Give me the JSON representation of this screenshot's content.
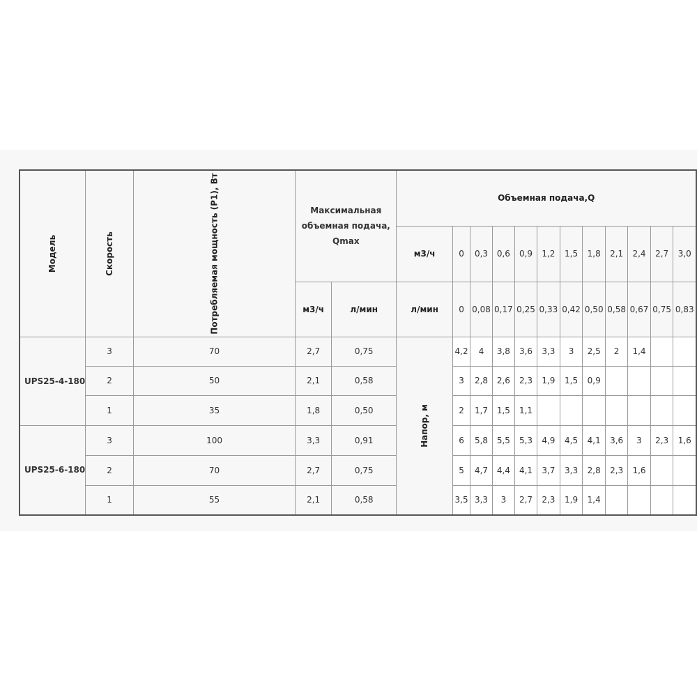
{
  "header": {
    "model": "Модель",
    "speed": "Скорость",
    "power": "Потребляемая мощность (P1), Вт",
    "qmax": "Максимальная объемная подача, Qmax",
    "qmax_m3h": "м3/ч",
    "qmax_lmin": "л/мин",
    "flow": "Объемная подача,Q",
    "flow_m3h_label": "м3/ч",
    "flow_lmin_label": "л/мин",
    "flow_m3h": [
      "0",
      "0,3",
      "0,6",
      "0,9",
      "1,2",
      "1,5",
      "1,8",
      "2,1",
      "2,4",
      "2,7",
      "3,0"
    ],
    "flow_lmin": [
      "0",
      "0,08",
      "0,17",
      "0,25",
      "0,33",
      "0,42",
      "0,50",
      "0,58",
      "0,67",
      "0,75",
      "0,83"
    ],
    "head": "Напор, м"
  },
  "models": [
    {
      "name": "UPS25-4-180",
      "rows": [
        {
          "speed": "3",
          "power": "70",
          "q_m3h": "2,7",
          "q_lmin": "0,75",
          "head": [
            "4,2",
            "4",
            "3,8",
            "3,6",
            "3,3",
            "3",
            "2,5",
            "2",
            "1,4",
            "",
            ""
          ]
        },
        {
          "speed": "2",
          "power": "50",
          "q_m3h": "2,1",
          "q_lmin": "0,58",
          "head": [
            "3",
            "2,8",
            "2,6",
            "2,3",
            "1,9",
            "1,5",
            "0,9",
            "",
            "",
            "",
            ""
          ]
        },
        {
          "speed": "1",
          "power": "35",
          "q_m3h": "1,8",
          "q_lmin": "0,50",
          "head": [
            "2",
            "1,7",
            "1,5",
            "1,1",
            "",
            "",
            "",
            "",
            "",
            "",
            ""
          ]
        }
      ]
    },
    {
      "name": "UPS25-6-180",
      "rows": [
        {
          "speed": "3",
          "power": "100",
          "q_m3h": "3,3",
          "q_lmin": "0,91",
          "head": [
            "6",
            "5,8",
            "5,5",
            "5,3",
            "4,9",
            "4,5",
            "4,1",
            "3,6",
            "3",
            "2,3",
            "1,6"
          ]
        },
        {
          "speed": "2",
          "power": "70",
          "q_m3h": "2,7",
          "q_lmin": "0,75",
          "head": [
            "5",
            "4,7",
            "4,4",
            "4,1",
            "3,7",
            "3,3",
            "2,8",
            "2,3",
            "1,6",
            "",
            ""
          ]
        },
        {
          "speed": "1",
          "power": "55",
          "q_m3h": "2,1",
          "q_lmin": "0,58",
          "head": [
            "3,5",
            "3,3",
            "3",
            "2,7",
            "2,3",
            "1,9",
            "1,4",
            "",
            "",
            "",
            ""
          ]
        }
      ]
    }
  ]
}
